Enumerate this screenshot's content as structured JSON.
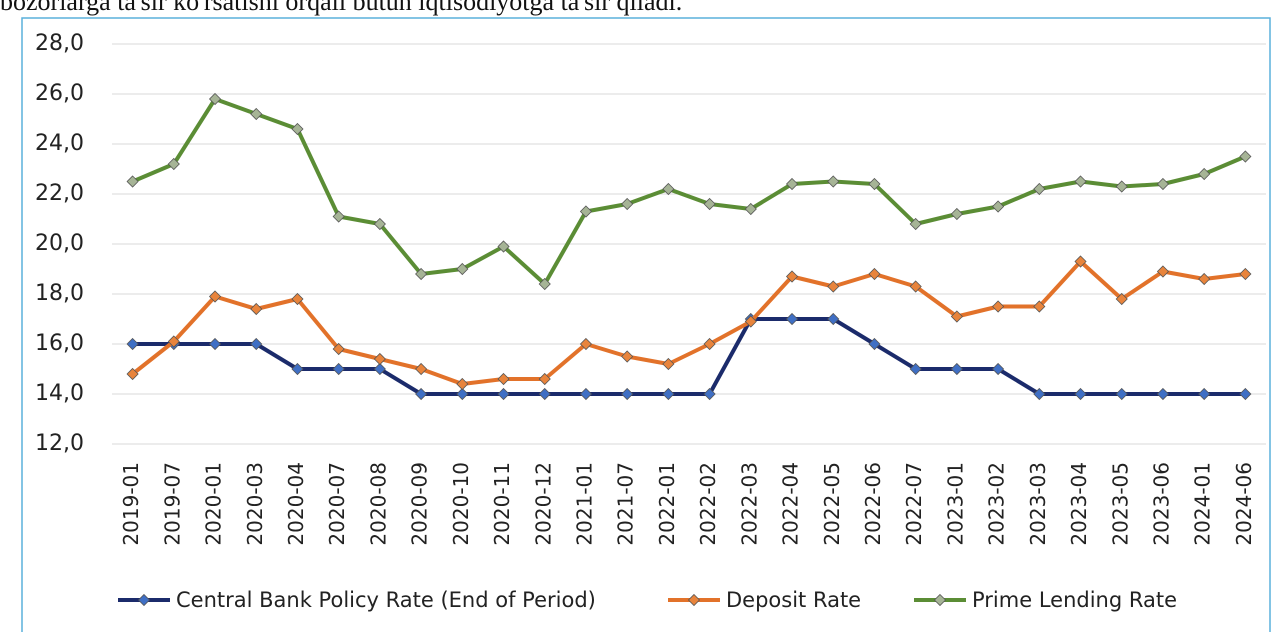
{
  "caption": "bozorlarga ta'sir ko'rsatishi orqali butun iqtisodiyotga ta'sir qiladi.",
  "chart_data": {
    "type": "line",
    "categories": [
      "2019-01",
      "2019-07",
      "2020-01",
      "2020-03",
      "2020-04",
      "2020-07",
      "2020-08",
      "2020-09",
      "2020-10",
      "2020-11",
      "2020-12",
      "2021-01",
      "2021-07",
      "2022-01",
      "2022-02",
      "2022-03",
      "2022-04",
      "2022-05",
      "2022-06",
      "2022-07",
      "2023-01",
      "2023-02",
      "2023-03",
      "2023-04",
      "2023-05",
      "2023-06",
      "2024-01",
      "2024-06"
    ],
    "series": [
      {
        "name": "Central Bank Policy Rate (End of Period)",
        "color": "#1b2b6b",
        "marker_color": "#3f6fc4",
        "values": [
          16,
          16,
          16,
          16,
          15,
          15,
          15,
          14,
          14,
          14,
          14,
          14,
          14,
          14,
          14,
          17,
          17,
          17,
          16,
          15,
          15,
          15,
          14,
          14,
          14,
          14,
          14,
          14
        ]
      },
      {
        "name": "Deposit Rate",
        "color": "#e2722a",
        "marker_color": "#e8843c",
        "values": [
          14.8,
          16.1,
          17.9,
          17.4,
          17.8,
          15.8,
          15.4,
          15.0,
          14.4,
          14.6,
          14.6,
          16.0,
          15.5,
          15.2,
          16.0,
          16.9,
          18.7,
          18.3,
          18.8,
          18.3,
          17.1,
          17.5,
          17.5,
          19.3,
          17.8,
          18.9,
          18.6,
          18.8
        ]
      },
      {
        "name": "Prime Lending Rate",
        "color": "#5b8d35",
        "marker_color": "#a6b496",
        "values": [
          22.5,
          23.2,
          25.8,
          25.2,
          24.6,
          21.1,
          20.8,
          18.8,
          19.0,
          19.9,
          18.4,
          21.3,
          21.6,
          22.2,
          21.6,
          21.4,
          22.4,
          22.5,
          22.4,
          20.8,
          21.2,
          21.5,
          22.2,
          22.5,
          22.3,
          22.4,
          22.8,
          23.5
        ]
      }
    ],
    "ylim": [
      12,
      28
    ],
    "yticks": [
      {
        "value": 12,
        "label": "12,0"
      },
      {
        "value": 14,
        "label": "14,0"
      },
      {
        "value": 16,
        "label": "16,0"
      },
      {
        "value": 18,
        "label": "18,0"
      },
      {
        "value": 20,
        "label": "20,0"
      },
      {
        "value": 22,
        "label": "22,0"
      },
      {
        "value": 24,
        "label": "24,0"
      },
      {
        "value": 26,
        "label": "26,0"
      },
      {
        "value": 28,
        "label": "28,0"
      }
    ],
    "grid": true,
    "legend": "bottom"
  }
}
